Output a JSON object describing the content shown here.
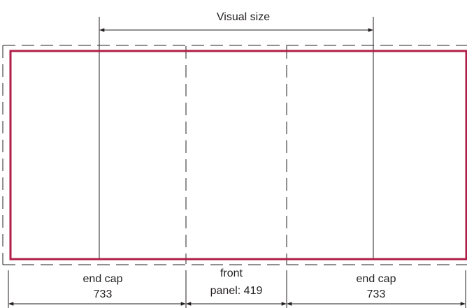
{
  "visual_size_label": "Visual size",
  "left_label": {
    "line1": "end cap",
    "line2": "733"
  },
  "center_label": {
    "line1": "front",
    "line2": "panel: 419"
  },
  "right_label": {
    "line1": "end cap",
    "line2": "733"
  },
  "colors": {
    "border": "#b01f48",
    "line": "#231f20",
    "background": "#ffffff"
  }
}
